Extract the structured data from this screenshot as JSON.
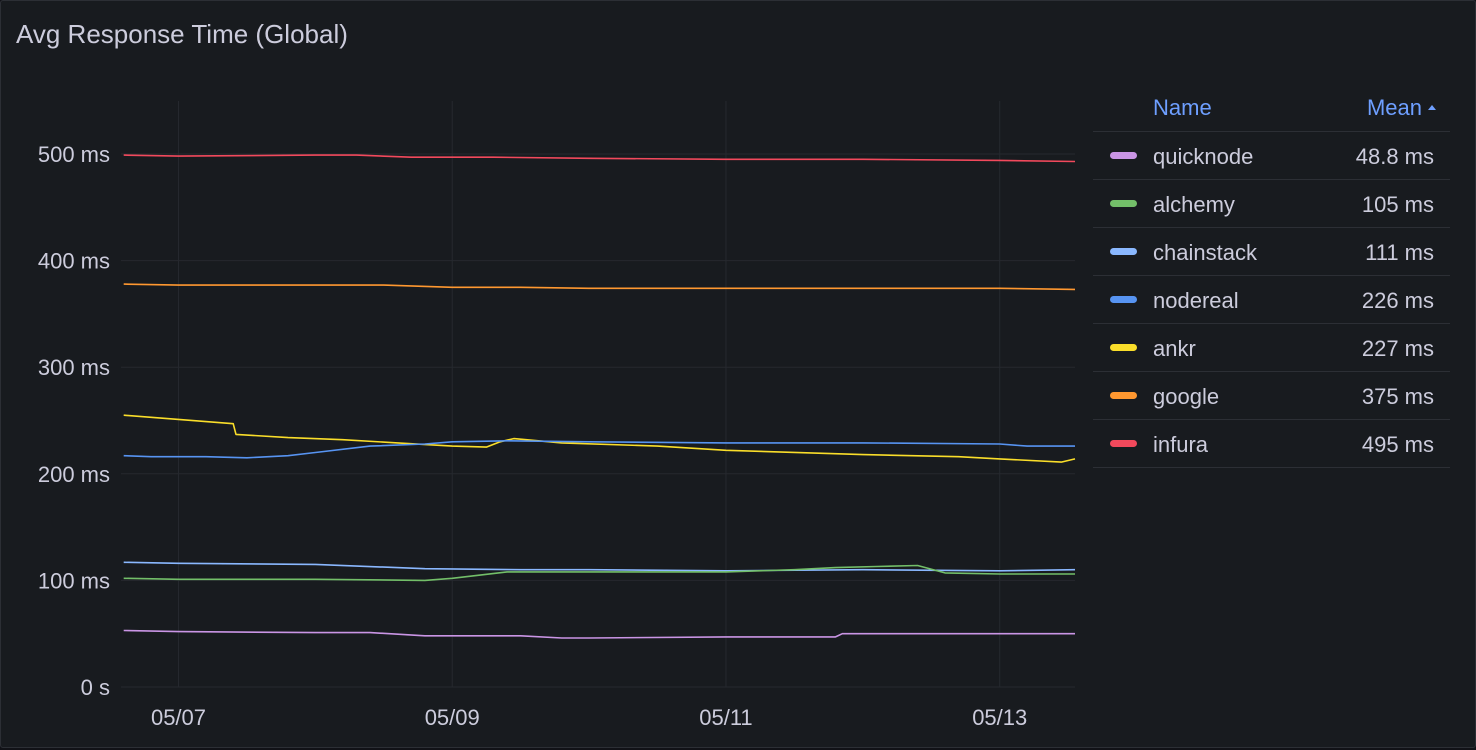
{
  "panel": {
    "title": "Avg Response Time (Global)"
  },
  "legend": {
    "name_header": "Name",
    "mean_header": "Mean",
    "rows": [
      {
        "name": "quicknode",
        "mean": "48.8 ms",
        "color": "#ca95e5"
      },
      {
        "name": "alchemy",
        "mean": "105 ms",
        "color": "#73bf69"
      },
      {
        "name": "chainstack",
        "mean": "111 ms",
        "color": "#8ab8ff"
      },
      {
        "name": "nodereal",
        "mean": "226 ms",
        "color": "#5794f2"
      },
      {
        "name": "ankr",
        "mean": "227 ms",
        "color": "#fade2a"
      },
      {
        "name": "google",
        "mean": "375 ms",
        "color": "#ff9830"
      },
      {
        "name": "infura",
        "mean": "495 ms",
        "color": "#f2495c"
      }
    ]
  },
  "chart_data": {
    "type": "line",
    "title": "Avg Response Time (Global)",
    "xlabel": "",
    "ylabel": "",
    "x_ticks": [
      "05/07",
      "05/09",
      "05/11",
      "05/13"
    ],
    "x_tick_values": [
      7,
      9,
      11,
      13
    ],
    "xlim": [
      6.58,
      13.55
    ],
    "y_ticks": [
      "0 s",
      "100 ms",
      "200 ms",
      "300 ms",
      "400 ms",
      "500 ms"
    ],
    "y_tick_values": [
      0,
      100,
      200,
      300,
      400,
      500
    ],
    "ylim": [
      0,
      500
    ],
    "grid": true,
    "legend_position": "right",
    "series": [
      {
        "name": "infura",
        "color": "#f2495c",
        "x": [
          6.6,
          7.0,
          8.0,
          8.3,
          8.7,
          9.3,
          10.0,
          11.0,
          12.0,
          13.0,
          13.55
        ],
        "y": [
          499,
          498,
          499,
          499,
          497,
          497,
          496,
          495,
          495,
          494,
          493
        ]
      },
      {
        "name": "google",
        "color": "#ff9830",
        "x": [
          6.6,
          7.0,
          8.0,
          8.5,
          9.0,
          9.5,
          10.0,
          11.0,
          12.0,
          13.0,
          13.55
        ],
        "y": [
          378,
          377,
          377,
          377,
          375,
          375,
          374,
          374,
          374,
          374,
          373
        ]
      },
      {
        "name": "ankr",
        "color": "#fade2a",
        "x": [
          6.6,
          6.8,
          7.0,
          7.4,
          7.42,
          7.8,
          8.2,
          8.6,
          9.0,
          9.25,
          9.35,
          9.45,
          9.8,
          10.5,
          11.0,
          12.0,
          12.7,
          13.0,
          13.45,
          13.55
        ],
        "y": [
          255,
          253,
          251,
          247,
          237,
          234,
          232,
          229,
          226,
          225,
          230,
          233,
          229,
          226,
          222,
          218,
          216,
          214,
          211,
          214
        ]
      },
      {
        "name": "nodereal",
        "color": "#5794f2",
        "x": [
          6.6,
          6.8,
          7.0,
          7.2,
          7.5,
          7.8,
          8.0,
          8.4,
          8.8,
          9.0,
          9.4,
          10.0,
          11.0,
          12.0,
          13.0,
          13.2,
          13.55
        ],
        "y": [
          217,
          216,
          216,
          216,
          215,
          217,
          220,
          226,
          228,
          230,
          231,
          230,
          229,
          229,
          228,
          226,
          226
        ]
      },
      {
        "name": "chainstack",
        "color": "#8ab8ff",
        "x": [
          6.6,
          7.0,
          8.0,
          8.8,
          9.5,
          10.0,
          11.0,
          12.0,
          13.0,
          13.55
        ],
        "y": [
          117,
          116,
          115,
          111,
          110,
          110,
          109,
          110,
          109,
          110
        ]
      },
      {
        "name": "alchemy",
        "color": "#73bf69",
        "x": [
          6.6,
          7.0,
          8.0,
          8.8,
          9.0,
          9.4,
          10.0,
          11.0,
          11.5,
          11.8,
          12.1,
          12.4,
          12.6,
          13.0,
          13.55
        ],
        "y": [
          102,
          101,
          101,
          100,
          102,
          108,
          108,
          108,
          110,
          112,
          113,
          114,
          107,
          106,
          106
        ]
      },
      {
        "name": "quicknode",
        "color": "#ca95e5",
        "x": [
          6.6,
          7.0,
          8.0,
          8.4,
          8.8,
          9.5,
          9.8,
          10.0,
          11.0,
          11.8,
          11.85,
          12.5,
          13.0,
          13.55
        ],
        "y": [
          53,
          52,
          51,
          51,
          48,
          48,
          46,
          46,
          47,
          47,
          50,
          50,
          50,
          50
        ]
      }
    ]
  }
}
